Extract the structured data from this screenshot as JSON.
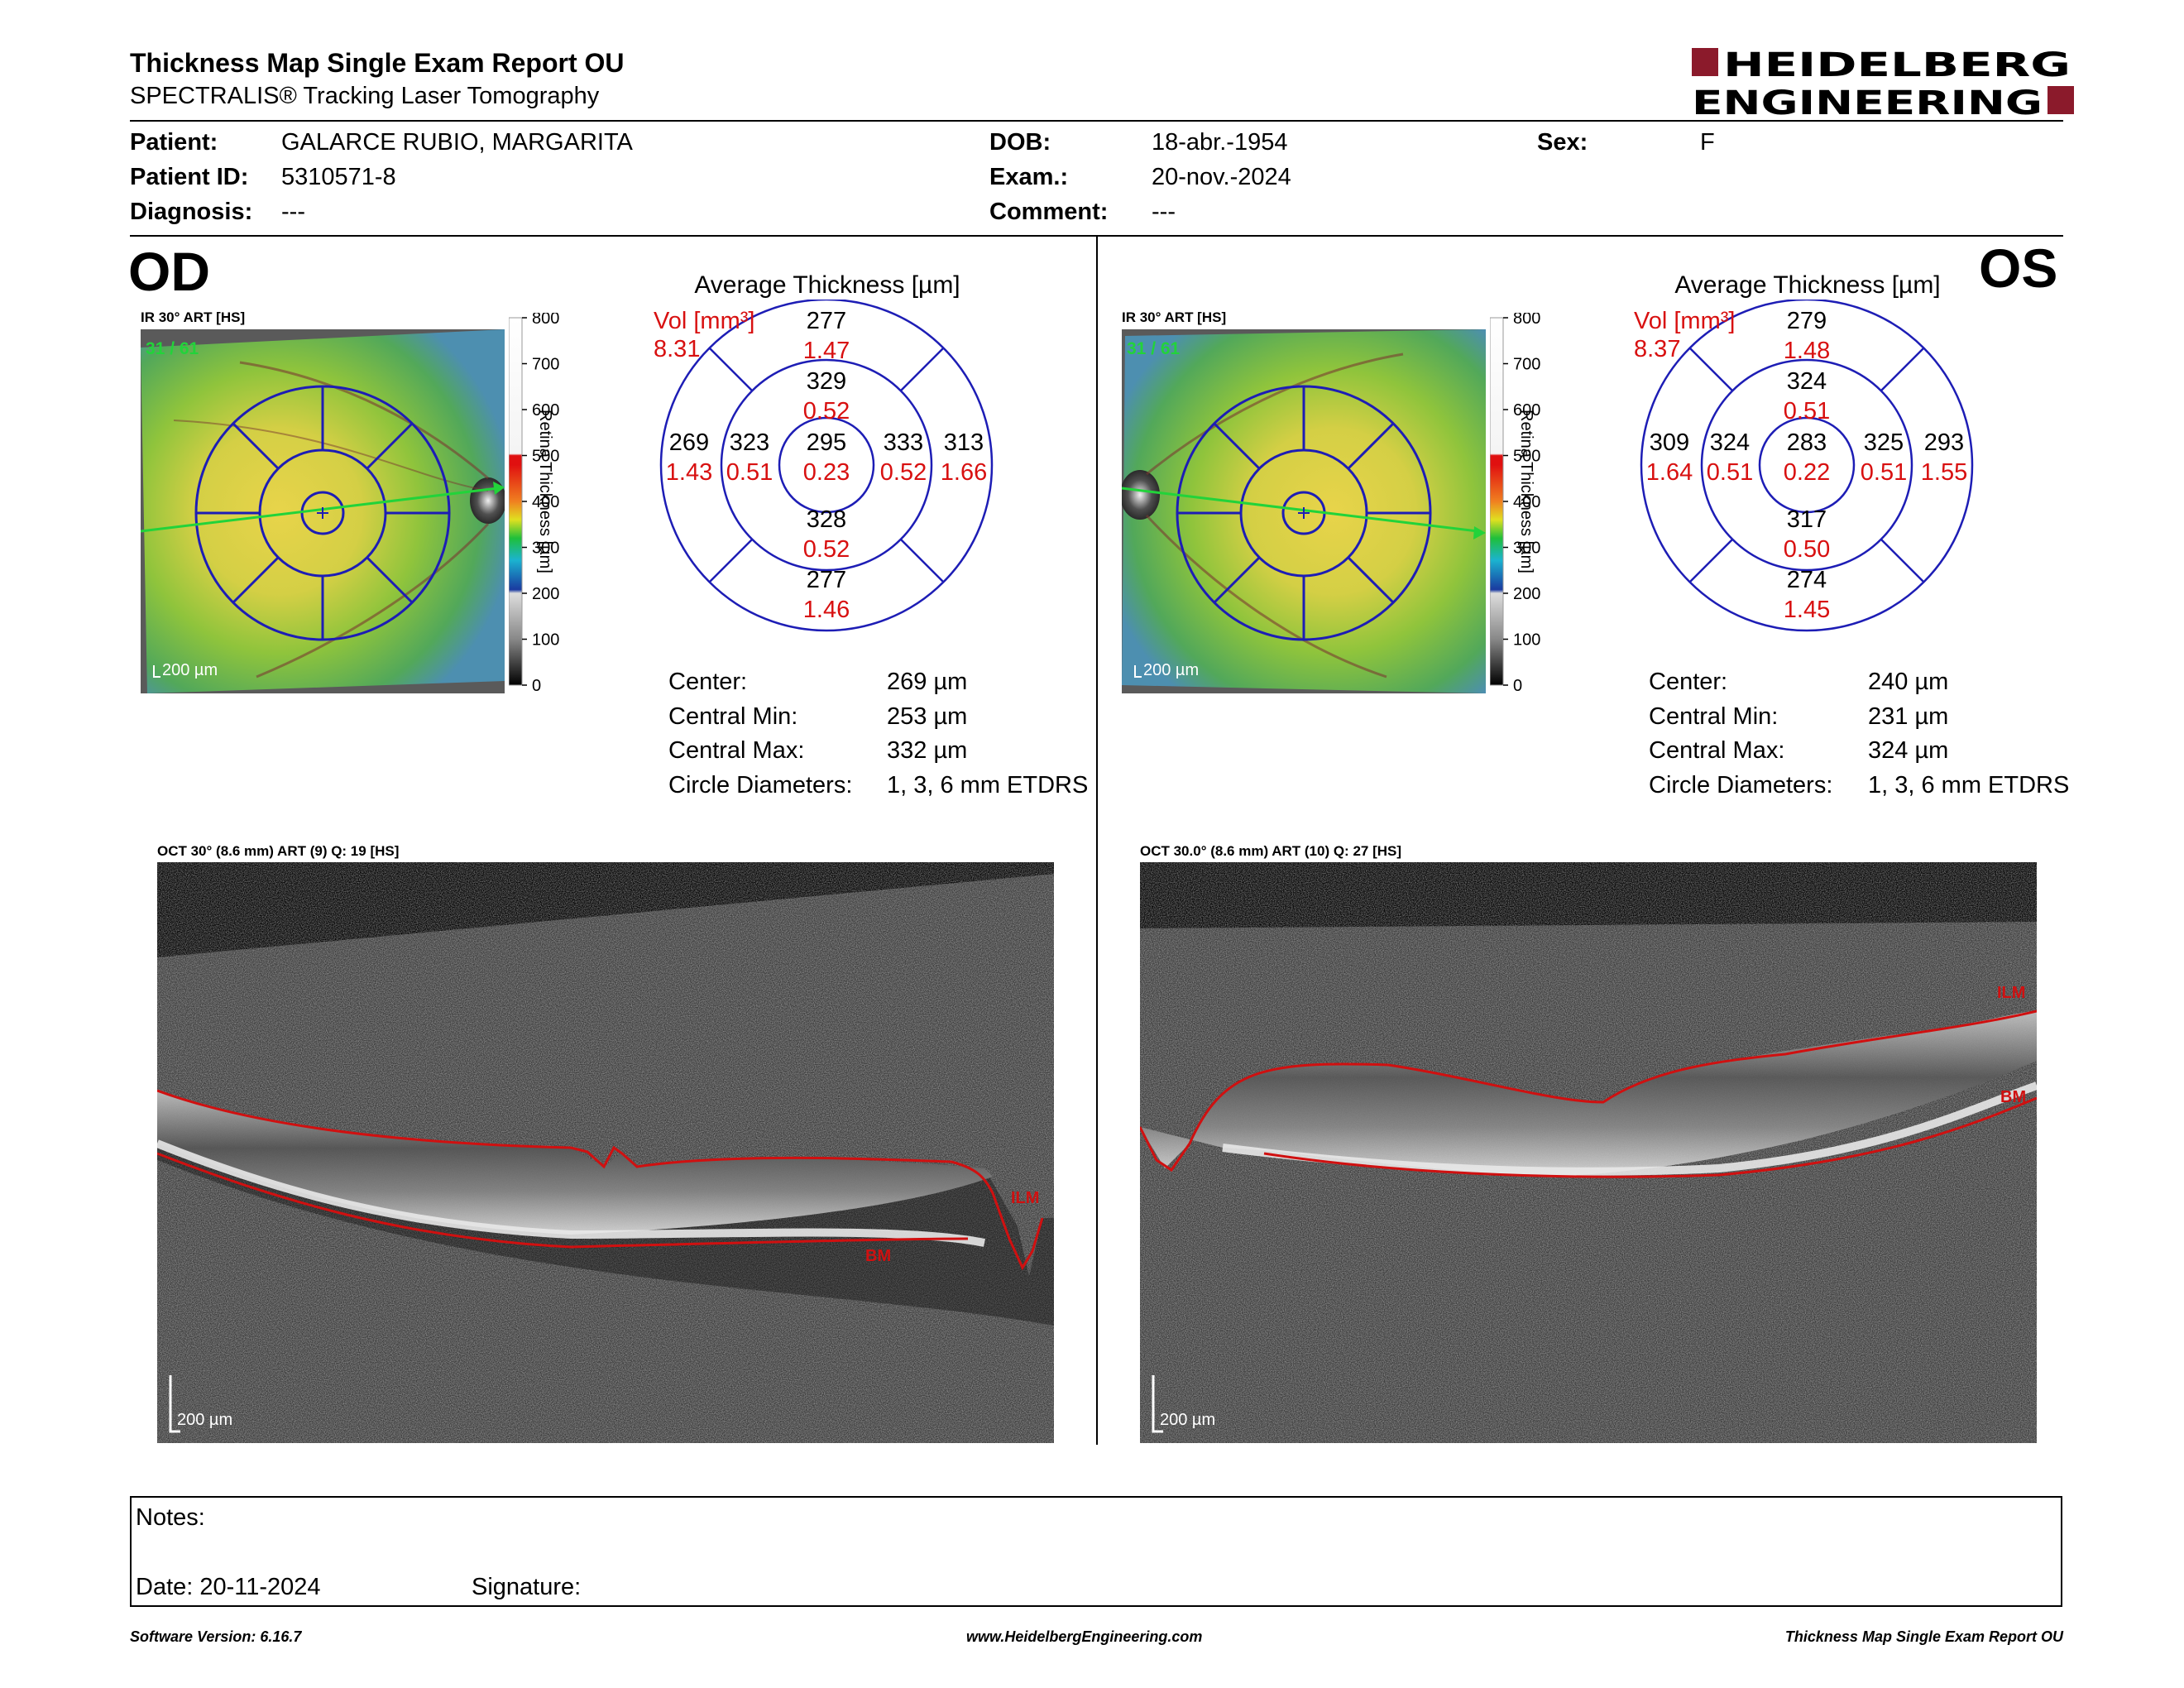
{
  "header": {
    "title": "Thickness Map Single Exam Report OU",
    "subtitle": "SPECTRALIS® Tracking Laser Tomography",
    "brand_line1": "HEIDELBERG",
    "brand_line2": "ENGINEERING",
    "brand_color": "#8b1a2b"
  },
  "patient": {
    "patient_label": "Patient:",
    "patient_value": "GALARCE RUBIO, MARGARITA",
    "id_label": "Patient ID:",
    "id_value": "5310571-8",
    "diagnosis_label": "Diagnosis:",
    "diagnosis_value": "---",
    "dob_label": "DOB:",
    "dob_value": "18-abr.-1954",
    "exam_label": "Exam.:",
    "exam_value": "20-nov.-2024",
    "comment_label": "Comment:",
    "comment_value": "---",
    "sex_label": "Sex:",
    "sex_value": "F"
  },
  "od": {
    "eye_label": "OD",
    "ir_label": "IR 30° ART [HS]",
    "ir_counter": "31 / 61",
    "scale_label": "200 µm",
    "colorbar_title": "Retina Thickness [µm]",
    "avg_title": "Average Thickness [µm]",
    "vol_label": "Vol [mm³]",
    "vol_value": "8.31",
    "grid": {
      "center": {
        "t": "295",
        "v": "0.23"
      },
      "inner_top": {
        "t": "329",
        "v": "0.52"
      },
      "inner_bottom": {
        "t": "328",
        "v": "0.52"
      },
      "inner_left": {
        "t": "323",
        "v": "0.51"
      },
      "inner_right": {
        "t": "333",
        "v": "0.52"
      },
      "outer_top": {
        "t": "277",
        "v": "1.47"
      },
      "outer_bottom": {
        "t": "277",
        "v": "1.46"
      },
      "outer_left": {
        "t": "269",
        "v": "1.43"
      },
      "outer_right": {
        "t": "313",
        "v": "1.66"
      }
    },
    "stats": {
      "center_label": "Center:",
      "center_value": "269 µm",
      "min_label": "Central Min:",
      "min_value": "253 µm",
      "max_label": "Central Max:",
      "max_value": "332 µm",
      "diam_label": "Circle Diameters:",
      "diam_value": "1, 3, 6 mm ETDRS"
    },
    "oct_label": "OCT 30° (8.6 mm) ART (9) Q: 19 [HS]",
    "oct_scale": "200 µm",
    "ilm_label": "ILM",
    "bm_label": "BM"
  },
  "os": {
    "eye_label": "OS",
    "ir_label": "IR 30° ART [HS]",
    "ir_counter": "31 / 61",
    "scale_label": "200 µm",
    "colorbar_title": "Retina Thickness [µm]",
    "avg_title": "Average Thickness [µm]",
    "vol_label": "Vol [mm³]",
    "vol_value": "8.37",
    "grid": {
      "center": {
        "t": "283",
        "v": "0.22"
      },
      "inner_top": {
        "t": "324",
        "v": "0.51"
      },
      "inner_bottom": {
        "t": "317",
        "v": "0.50"
      },
      "inner_left": {
        "t": "324",
        "v": "0.51"
      },
      "inner_right": {
        "t": "325",
        "v": "0.51"
      },
      "outer_top": {
        "t": "279",
        "v": "1.48"
      },
      "outer_bottom": {
        "t": "274",
        "v": "1.45"
      },
      "outer_left": {
        "t": "309",
        "v": "1.64"
      },
      "outer_right": {
        "t": "293",
        "v": "1.55"
      }
    },
    "stats": {
      "center_label": "Center:",
      "center_value": "240 µm",
      "min_label": "Central Min:",
      "min_value": "231 µm",
      "max_label": "Central Max:",
      "max_value": "324 µm",
      "diam_label": "Circle Diameters:",
      "diam_value": "1, 3, 6 mm ETDRS"
    },
    "oct_label": "OCT 30.0° (8.6 mm) ART (10) Q: 27 [HS]",
    "oct_scale": "200 µm",
    "ilm_label": "ILM",
    "bm_label": "BM"
  },
  "colorbar_ticks": [
    "800",
    "700",
    "600",
    "500",
    "400",
    "300",
    "200",
    "100",
    "0"
  ],
  "notes": {
    "notes_label": "Notes:",
    "date_label": "Date: 20-11-2024",
    "signature_label": "Signature:"
  },
  "footer": {
    "software": "Software Version: 6.16.7",
    "website": "www.HeidelbergEngineering.com",
    "report": "Thickness Map Single Exam Report OU"
  }
}
